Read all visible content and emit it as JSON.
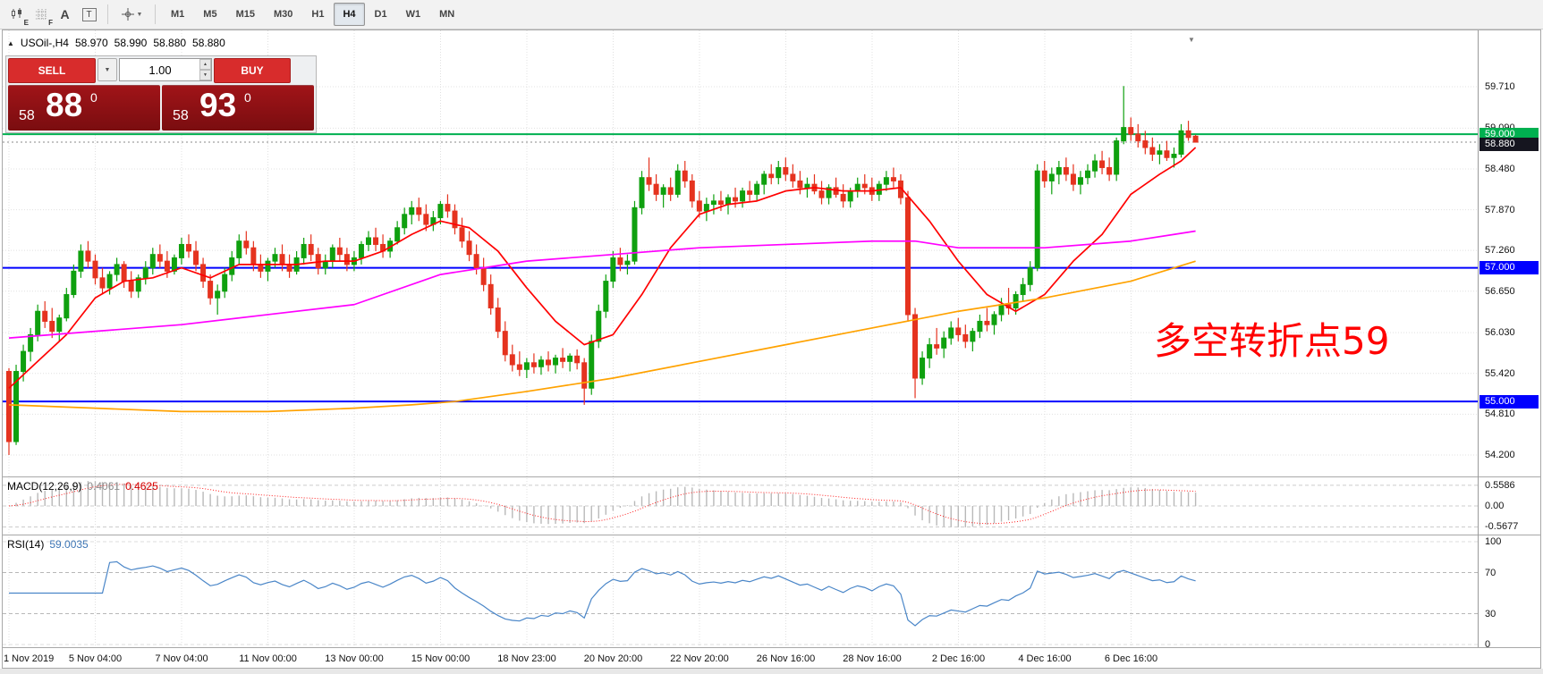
{
  "icons": {
    "expand": "▲",
    "caret": "▼",
    "spin_up": "▲",
    "spin_down": "▼",
    "shift_down": "▼"
  },
  "toolbar": {
    "tool_badges": {
      "candles": "E",
      "grid": "F"
    },
    "text_tool": "A",
    "box_tool": "T",
    "timeframes": [
      "M1",
      "M5",
      "M15",
      "M30",
      "H1",
      "H4",
      "D1",
      "W1",
      "MN"
    ],
    "active": "H4"
  },
  "symbol_info": {
    "symbol": "USOil-,H4",
    "open": "58.970",
    "high": "58.990",
    "low": "58.880",
    "close": "58.880"
  },
  "trade_panel": {
    "sell_label": "SELL",
    "buy_label": "BUY",
    "volume": "1.00",
    "sell_price": {
      "small": "58",
      "big": "88",
      "sup": "0"
    },
    "buy_price": {
      "small": "58",
      "big": "93",
      "sup": "0"
    }
  },
  "annotation": {
    "text": "多空转折点59",
    "color": "#ff0000"
  },
  "macd": {
    "label": "MACD(12,26,9)",
    "value1": "0.4061",
    "value2": "0.4625",
    "axis": [
      "0.5586",
      "0.00",
      "-0.5677"
    ],
    "fast": 12,
    "slow": 26,
    "signal": 9
  },
  "rsi": {
    "label": "RSI(14)",
    "value": "59.0035",
    "axis": [
      "100",
      "70",
      "30",
      "0"
    ],
    "period": 14,
    "levels": [
      70,
      30
    ]
  },
  "chart_data": {
    "type": "candlestick",
    "symbol": "USOil",
    "timeframe": "H4",
    "colors": {
      "up": "#0fa00f",
      "down": "#e5331f"
    },
    "price_axis": [
      "59.710",
      "59.090",
      "58.480",
      "57.870",
      "57.260",
      "56.650",
      "56.030",
      "55.420",
      "54.810",
      "54.200"
    ],
    "time_axis": [
      "1 Nov 2019",
      "5 Nov 04:00",
      "7 Nov 04:00",
      "11 Nov 00:00",
      "13 Nov 00:00",
      "15 Nov 00:00",
      "18 Nov 23:00",
      "20 Nov 20:00",
      "22 Nov 20:00",
      "26 Nov 16:00",
      "28 Nov 16:00",
      "2 Dec 16:00",
      "4 Dec 16:00",
      "6 Dec 16:00"
    ],
    "hlines": [
      {
        "price": 59.0,
        "label": "59.000",
        "color": "#00b050",
        "width": 2
      },
      {
        "price": 57.0,
        "label": "57.000",
        "color": "#0000ff",
        "width": 2
      },
      {
        "price": 55.0,
        "label": "55.000",
        "color": "#0000ff",
        "width": 2
      }
    ],
    "bid_tag": {
      "price": 58.88,
      "label": "58.880"
    },
    "ma_lines": [
      {
        "name": "ma-fast",
        "color": "#ff0000",
        "width": 1.7,
        "points": [
          [
            0,
            55.2
          ],
          [
            4,
            55.6
          ],
          [
            8,
            56.0
          ],
          [
            12,
            56.55
          ],
          [
            16,
            56.8
          ],
          [
            20,
            56.85
          ],
          [
            24,
            57.0
          ],
          [
            28,
            56.85
          ],
          [
            32,
            57.05
          ],
          [
            36,
            57.05
          ],
          [
            40,
            57.05
          ],
          [
            44,
            57.1
          ],
          [
            48,
            57.1
          ],
          [
            52,
            57.25
          ],
          [
            56,
            57.5
          ],
          [
            60,
            57.7
          ],
          [
            64,
            57.6
          ],
          [
            68,
            57.25
          ],
          [
            72,
            56.7
          ],
          [
            76,
            56.2
          ],
          [
            80,
            55.85
          ],
          [
            84,
            56.0
          ],
          [
            88,
            56.6
          ],
          [
            92,
            57.3
          ],
          [
            96,
            57.8
          ],
          [
            100,
            57.95
          ],
          [
            104,
            58.0
          ],
          [
            108,
            58.15
          ],
          [
            112,
            58.2
          ],
          [
            116,
            58.15
          ],
          [
            120,
            58.15
          ],
          [
            124,
            58.2
          ],
          [
            128,
            57.7
          ],
          [
            132,
            57.1
          ],
          [
            136,
            56.6
          ],
          [
            140,
            56.35
          ],
          [
            144,
            56.6
          ],
          [
            148,
            57.1
          ],
          [
            152,
            57.5
          ],
          [
            156,
            58.1
          ],
          [
            160,
            58.4
          ],
          [
            163,
            58.6
          ],
          [
            165,
            58.8
          ]
        ]
      },
      {
        "name": "ma-mid",
        "color": "#ff00ff",
        "width": 1.7,
        "points": [
          [
            0,
            55.95
          ],
          [
            12,
            56.05
          ],
          [
            24,
            56.15
          ],
          [
            36,
            56.3
          ],
          [
            48,
            56.45
          ],
          [
            60,
            56.9
          ],
          [
            66,
            57.0
          ],
          [
            72,
            57.1
          ],
          [
            84,
            57.2
          ],
          [
            96,
            57.3
          ],
          [
            108,
            57.35
          ],
          [
            120,
            57.4
          ],
          [
            126,
            57.4
          ],
          [
            132,
            57.3
          ],
          [
            144,
            57.3
          ],
          [
            156,
            57.4
          ],
          [
            162,
            57.5
          ],
          [
            165,
            57.55
          ]
        ]
      },
      {
        "name": "ma-slow",
        "color": "#ffa200",
        "width": 1.7,
        "points": [
          [
            0,
            54.95
          ],
          [
            12,
            54.9
          ],
          [
            24,
            54.85
          ],
          [
            36,
            54.85
          ],
          [
            48,
            54.9
          ],
          [
            56,
            54.95
          ],
          [
            62,
            55.0
          ],
          [
            72,
            55.15
          ],
          [
            84,
            55.35
          ],
          [
            96,
            55.6
          ],
          [
            108,
            55.85
          ],
          [
            120,
            56.1
          ],
          [
            132,
            56.35
          ],
          [
            144,
            56.55
          ],
          [
            156,
            56.8
          ],
          [
            162,
            57.0
          ],
          [
            165,
            57.1
          ]
        ]
      }
    ],
    "candles": [
      [
        55.45,
        55.5,
        54.2,
        54.4
      ],
      [
        54.4,
        55.55,
        54.35,
        55.45
      ],
      [
        55.45,
        55.85,
        55.3,
        55.75
      ],
      [
        55.75,
        56.1,
        55.6,
        56.0
      ],
      [
        56.0,
        56.45,
        55.9,
        56.35
      ],
      [
        56.35,
        56.5,
        56.1,
        56.2
      ],
      [
        56.2,
        56.4,
        55.95,
        56.05
      ],
      [
        56.05,
        56.3,
        55.9,
        56.25
      ],
      [
        56.25,
        56.7,
        56.2,
        56.6
      ],
      [
        56.6,
        57.05,
        56.55,
        56.95
      ],
      [
        56.95,
        57.35,
        56.85,
        57.25
      ],
      [
        57.25,
        57.4,
        57.0,
        57.1
      ],
      [
        57.1,
        57.2,
        56.75,
        56.85
      ],
      [
        56.85,
        57.0,
        56.6,
        56.7
      ],
      [
        56.7,
        56.95,
        56.6,
        56.9
      ],
      [
        56.9,
        57.15,
        56.8,
        57.05
      ],
      [
        57.05,
        57.1,
        56.7,
        56.8
      ],
      [
        56.8,
        56.95,
        56.55,
        56.65
      ],
      [
        56.65,
        56.9,
        56.55,
        56.85
      ],
      [
        56.85,
        57.1,
        56.75,
        57.0
      ],
      [
        57.0,
        57.3,
        56.9,
        57.2
      ],
      [
        57.2,
        57.35,
        57.0,
        57.1
      ],
      [
        57.1,
        57.25,
        56.85,
        56.95
      ],
      [
        56.95,
        57.2,
        56.9,
        57.15
      ],
      [
        57.15,
        57.45,
        57.05,
        57.35
      ],
      [
        57.35,
        57.5,
        57.15,
        57.25
      ],
      [
        57.25,
        57.4,
        56.95,
        57.05
      ],
      [
        57.05,
        57.15,
        56.7,
        56.8
      ],
      [
        56.8,
        56.9,
        56.45,
        56.55
      ],
      [
        56.55,
        56.75,
        56.3,
        56.65
      ],
      [
        56.65,
        57.0,
        56.55,
        56.9
      ],
      [
        56.9,
        57.25,
        56.8,
        57.15
      ],
      [
        57.15,
        57.5,
        57.05,
        57.4
      ],
      [
        57.4,
        57.55,
        57.2,
        57.3
      ],
      [
        57.3,
        57.4,
        56.95,
        57.05
      ],
      [
        57.05,
        57.2,
        56.85,
        56.95
      ],
      [
        56.95,
        57.15,
        56.8,
        57.1
      ],
      [
        57.1,
        57.3,
        57.0,
        57.2
      ],
      [
        57.2,
        57.35,
        56.95,
        57.05
      ],
      [
        57.05,
        57.2,
        56.85,
        56.95
      ],
      [
        56.95,
        57.25,
        56.9,
        57.15
      ],
      [
        57.15,
        57.45,
        57.05,
        57.35
      ],
      [
        57.35,
        57.5,
        57.1,
        57.2
      ],
      [
        57.2,
        57.3,
        56.9,
        57.0
      ],
      [
        57.0,
        57.2,
        56.9,
        57.1
      ],
      [
        57.1,
        57.35,
        57.0,
        57.3
      ],
      [
        57.3,
        57.45,
        57.1,
        57.2
      ],
      [
        57.2,
        57.3,
        56.95,
        57.05
      ],
      [
        57.05,
        57.25,
        56.95,
        57.15
      ],
      [
        57.15,
        57.4,
        57.05,
        57.35
      ],
      [
        57.35,
        57.55,
        57.25,
        57.45
      ],
      [
        57.45,
        57.6,
        57.25,
        57.35
      ],
      [
        57.35,
        57.5,
        57.15,
        57.25
      ],
      [
        57.25,
        57.45,
        57.15,
        57.4
      ],
      [
        57.4,
        57.7,
        57.35,
        57.6
      ],
      [
        57.6,
        57.9,
        57.5,
        57.8
      ],
      [
        57.8,
        58.0,
        57.65,
        57.9
      ],
      [
        57.9,
        58.05,
        57.7,
        57.8
      ],
      [
        57.8,
        57.95,
        57.55,
        57.65
      ],
      [
        57.65,
        57.85,
        57.55,
        57.75
      ],
      [
        57.75,
        58.0,
        57.65,
        57.95
      ],
      [
        57.95,
        58.1,
        57.75,
        57.85
      ],
      [
        57.85,
        57.95,
        57.5,
        57.6
      ],
      [
        57.6,
        57.75,
        57.3,
        57.4
      ],
      [
        57.4,
        57.55,
        57.1,
        57.2
      ],
      [
        57.2,
        57.35,
        56.9,
        57.0
      ],
      [
        57.0,
        57.15,
        56.65,
        56.75
      ],
      [
        56.75,
        56.9,
        56.3,
        56.4
      ],
      [
        56.4,
        56.55,
        55.95,
        56.05
      ],
      [
        56.05,
        56.2,
        55.6,
        55.7
      ],
      [
        55.7,
        55.85,
        55.45,
        55.55
      ],
      [
        55.55,
        55.75,
        55.38,
        55.48
      ],
      [
        55.48,
        55.65,
        55.35,
        55.58
      ],
      [
        55.58,
        55.72,
        55.42,
        55.52
      ],
      [
        55.52,
        55.68,
        55.4,
        55.62
      ],
      [
        55.62,
        55.75,
        55.45,
        55.55
      ],
      [
        55.55,
        55.7,
        55.42,
        55.65
      ],
      [
        55.65,
        55.8,
        55.5,
        55.6
      ],
      [
        55.6,
        55.72,
        55.45,
        55.68
      ],
      [
        55.68,
        55.78,
        55.48,
        55.58
      ],
      [
        55.58,
        55.65,
        54.95,
        55.2
      ],
      [
        55.2,
        56.0,
        55.1,
        55.9
      ],
      [
        55.9,
        56.45,
        55.8,
        56.35
      ],
      [
        56.35,
        56.9,
        56.25,
        56.8
      ],
      [
        56.8,
        57.25,
        56.7,
        57.15
      ],
      [
        57.15,
        57.3,
        56.95,
        57.05
      ],
      [
        57.05,
        57.2,
        56.9,
        57.1
      ],
      [
        57.1,
        58.0,
        57.05,
        57.9
      ],
      [
        57.9,
        58.45,
        57.8,
        58.35
      ],
      [
        58.35,
        58.65,
        58.15,
        58.25
      ],
      [
        58.25,
        58.4,
        58.0,
        58.1
      ],
      [
        58.1,
        58.25,
        57.9,
        58.2
      ],
      [
        58.2,
        58.35,
        58.0,
        58.1
      ],
      [
        58.1,
        58.55,
        58.05,
        58.45
      ],
      [
        58.45,
        58.6,
        58.2,
        58.3
      ],
      [
        58.3,
        58.4,
        57.9,
        58.0
      ],
      [
        58.0,
        58.15,
        57.75,
        57.85
      ],
      [
        57.85,
        58.05,
        57.7,
        57.95
      ],
      [
        57.95,
        58.1,
        57.8,
        58.0
      ],
      [
        58.0,
        58.15,
        57.85,
        57.95
      ],
      [
        57.95,
        58.1,
        57.8,
        58.05
      ],
      [
        58.05,
        58.2,
        57.9,
        58.0
      ],
      [
        58.0,
        58.2,
        57.9,
        58.15
      ],
      [
        58.15,
        58.3,
        58.0,
        58.1
      ],
      [
        58.1,
        58.3,
        58.0,
        58.25
      ],
      [
        58.25,
        58.45,
        58.1,
        58.4
      ],
      [
        58.4,
        58.55,
        58.25,
        58.35
      ],
      [
        58.35,
        58.6,
        58.25,
        58.5
      ],
      [
        58.5,
        58.65,
        58.3,
        58.4
      ],
      [
        58.4,
        58.55,
        58.2,
        58.3
      ],
      [
        58.3,
        58.45,
        58.1,
        58.2
      ],
      [
        58.2,
        58.35,
        58.05,
        58.25
      ],
      [
        58.25,
        58.4,
        58.1,
        58.15
      ],
      [
        58.15,
        58.3,
        57.95,
        58.05
      ],
      [
        58.05,
        58.25,
        57.95,
        58.2
      ],
      [
        58.2,
        58.35,
        58.05,
        58.1
      ],
      [
        58.1,
        58.25,
        57.9,
        58.0
      ],
      [
        58.0,
        58.2,
        57.9,
        58.15
      ],
      [
        58.15,
        58.35,
        58.05,
        58.25
      ],
      [
        58.25,
        58.4,
        58.1,
        58.2
      ],
      [
        58.2,
        58.35,
        58.0,
        58.1
      ],
      [
        58.1,
        58.3,
        58.0,
        58.25
      ],
      [
        58.25,
        58.45,
        58.15,
        58.35
      ],
      [
        58.35,
        58.5,
        58.2,
        58.3
      ],
      [
        58.3,
        58.4,
        57.95,
        58.05
      ],
      [
        58.05,
        58.15,
        56.2,
        56.3
      ],
      [
        56.3,
        56.4,
        55.05,
        55.35
      ],
      [
        55.35,
        55.75,
        55.25,
        55.65
      ],
      [
        55.65,
        55.95,
        55.5,
        55.85
      ],
      [
        55.85,
        56.1,
        55.7,
        55.8
      ],
      [
        55.8,
        56.05,
        55.65,
        55.95
      ],
      [
        55.95,
        56.2,
        55.85,
        56.1
      ],
      [
        56.1,
        56.25,
        55.9,
        56.0
      ],
      [
        56.0,
        56.15,
        55.8,
        55.9
      ],
      [
        55.9,
        56.1,
        55.75,
        56.05
      ],
      [
        56.05,
        56.3,
        55.95,
        56.2
      ],
      [
        56.2,
        56.4,
        56.05,
        56.15
      ],
      [
        56.15,
        56.35,
        56.0,
        56.3
      ],
      [
        56.3,
        56.55,
        56.2,
        56.45
      ],
      [
        56.45,
        56.7,
        56.3,
        56.4
      ],
      [
        56.4,
        56.65,
        56.3,
        56.6
      ],
      [
        56.6,
        56.85,
        56.5,
        56.75
      ],
      [
        56.75,
        57.1,
        56.65,
        57.0
      ],
      [
        57.0,
        58.55,
        56.95,
        58.45
      ],
      [
        58.45,
        58.6,
        58.2,
        58.3
      ],
      [
        58.3,
        58.5,
        58.1,
        58.4
      ],
      [
        58.4,
        58.6,
        58.25,
        58.5
      ],
      [
        58.5,
        58.65,
        58.3,
        58.4
      ],
      [
        58.4,
        58.55,
        58.15,
        58.25
      ],
      [
        58.25,
        58.45,
        58.1,
        58.35
      ],
      [
        58.35,
        58.55,
        58.25,
        58.45
      ],
      [
        58.45,
        58.7,
        58.35,
        58.6
      ],
      [
        58.6,
        58.75,
        58.4,
        58.5
      ],
      [
        58.5,
        58.65,
        58.3,
        58.4
      ],
      [
        58.4,
        58.95,
        58.3,
        58.9
      ],
      [
        58.9,
        59.72,
        58.85,
        59.1
      ],
      [
        59.1,
        59.25,
        58.9,
        59.0
      ],
      [
        59.0,
        59.15,
        58.8,
        58.9
      ],
      [
        58.9,
        59.05,
        58.7,
        58.8
      ],
      [
        58.8,
        58.95,
        58.6,
        58.7
      ],
      [
        58.7,
        58.85,
        58.55,
        58.75
      ],
      [
        58.75,
        58.9,
        58.6,
        58.65
      ],
      [
        58.65,
        58.8,
        58.5,
        58.7
      ],
      [
        58.7,
        59.15,
        58.65,
        59.05
      ],
      [
        59.05,
        59.2,
        58.9,
        58.95
      ],
      [
        58.97,
        58.99,
        58.88,
        58.88
      ]
    ]
  }
}
